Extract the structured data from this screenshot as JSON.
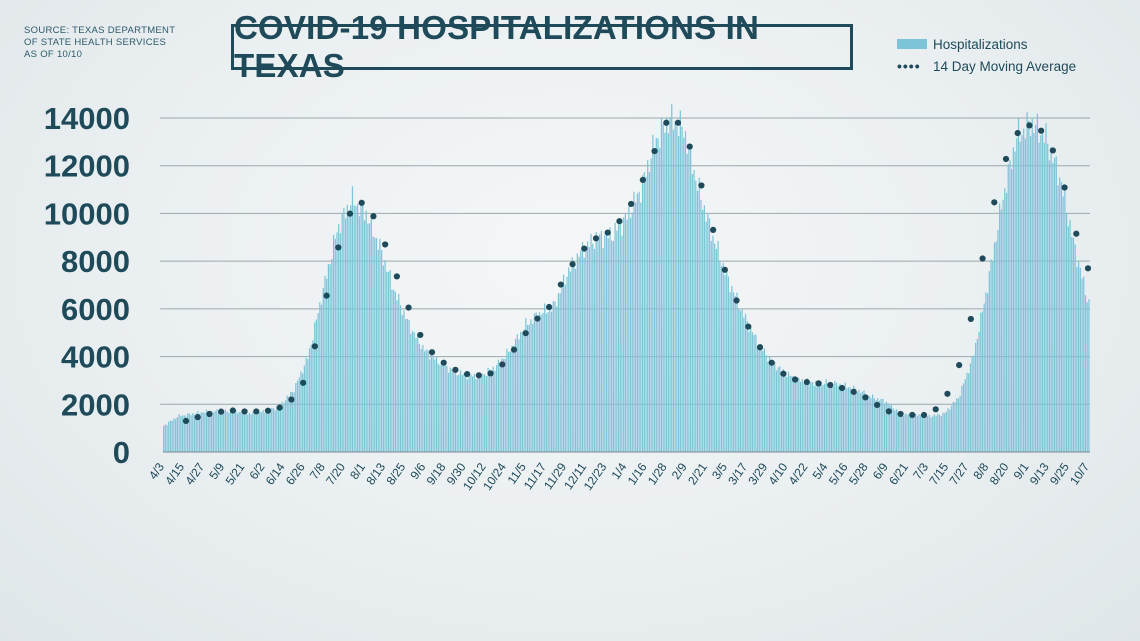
{
  "source_text": [
    "SOURCE: TEXAS DEPARTMENT",
    "OF STATE HEALTH SERVICES",
    "AS OF 10/10"
  ],
  "title": "COVID-19 HOSPITALIZATIONS IN TEXAS",
  "legend": {
    "bars_label": "Hospitalizations",
    "line_label": "14 Day Moving Average"
  },
  "colors": {
    "bar": "#7ec4d8",
    "dots": "#1e4a59",
    "text": "#1e4a59",
    "grid": "#9aa8ae"
  },
  "chart_data": {
    "type": "bar",
    "title": "COVID-19 HOSPITALIZATIONS IN TEXAS",
    "xlabel": "",
    "ylabel": "",
    "ylim": [
      0,
      14000
    ],
    "yticks": [
      0,
      2000,
      4000,
      6000,
      8000,
      10000,
      12000,
      14000
    ],
    "x_tick_labels": [
      "4/3",
      "4/15",
      "4/27",
      "5/9",
      "5/21",
      "6/2",
      "6/14",
      "6/26",
      "7/8",
      "7/20",
      "8/1",
      "8/13",
      "8/25",
      "9/6",
      "9/18",
      "9/30",
      "10/12",
      "10/24",
      "11/5",
      "11/17",
      "11/29",
      "12/11",
      "12/23",
      "1/4",
      "1/16",
      "1/28",
      "2/9",
      "2/21",
      "3/5",
      "3/17",
      "3/29",
      "4/10",
      "4/22",
      "5/4",
      "5/16",
      "5/28",
      "6/9",
      "6/21",
      "7/3",
      "7/15",
      "7/27",
      "8/8",
      "8/20",
      "9/1",
      "9/13",
      "9/25",
      "10/7"
    ],
    "grid": true,
    "legend_position": "top-right",
    "series": [
      {
        "name": "Hospitalizations",
        "type": "bar",
        "values": [
          1100,
          1500,
          1600,
          1700,
          1700,
          1700,
          1600,
          1700,
          1900,
          2600,
          4000,
          6700,
          9300,
          10600,
          10000,
          8500,
          6700,
          5300,
          4300,
          3800,
          3400,
          3200,
          3200,
          3600,
          4300,
          5300,
          5800,
          6100,
          7600,
          8500,
          9000,
          9100,
          9800,
          11000,
          13000,
          14000,
          13500,
          11000,
          9000,
          7300,
          5900,
          4700,
          3800,
          3300,
          3000,
          2900,
          2900,
          2800,
          2600,
          2300,
          2100,
          1600,
          1550,
          1500,
          1600,
          2300,
          4000,
          7000,
          10500,
          13200,
          13800,
          13200,
          11500,
          8600,
          6200
        ]
      },
      {
        "name": "14 Day Moving Average",
        "type": "dotted-line",
        "values": [
          1300,
          1500,
          1650,
          1750,
          1700,
          1700,
          1750,
          2000,
          2800,
          4700,
          7500,
          9800,
          10500,
          9800,
          8200,
          6500,
          5000,
          4100,
          3600,
          3300,
          3200,
          3300,
          3800,
          4700,
          5500,
          6100,
          7300,
          8300,
          8900,
          9200,
          9800,
          10800,
          12300,
          13800,
          13800,
          12200,
          9800,
          7700,
          6100,
          4800,
          3900,
          3300,
          3000,
          2900,
          2850,
          2700,
          2500,
          2200,
          1750,
          1600,
          1550,
          1550,
          2000,
          3300,
          5700,
          8900,
          11700,
          13300,
          13700,
          13400,
          12100,
          9500,
          7700
        ]
      }
    ]
  }
}
